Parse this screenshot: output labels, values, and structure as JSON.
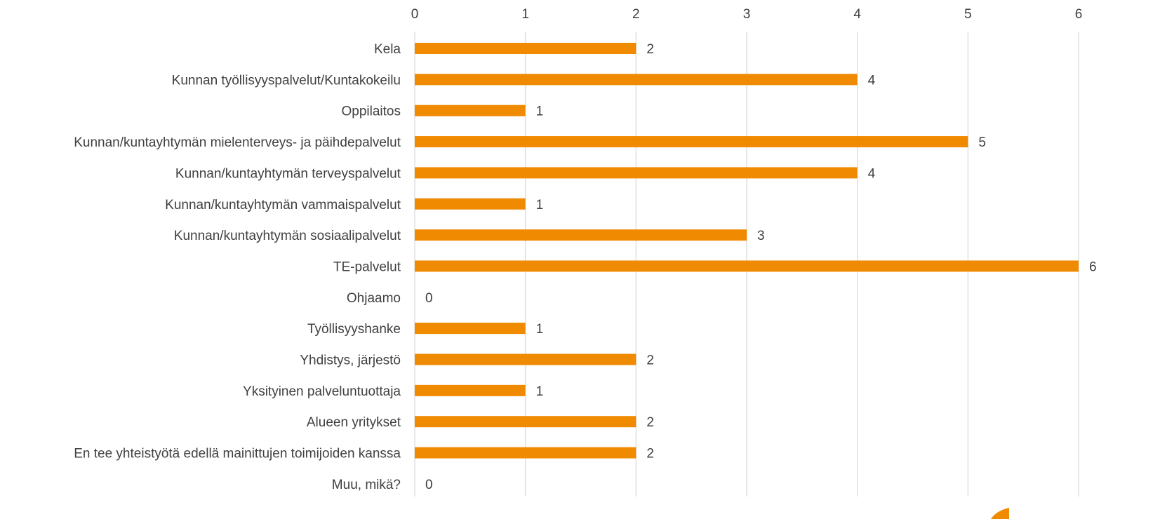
{
  "chart_data": {
    "type": "bar",
    "orientation": "horizontal",
    "xaxis_position": "top",
    "grid": true,
    "legend": "none",
    "xlim": [
      0,
      6
    ],
    "ticks": [
      0,
      1,
      2,
      3,
      4,
      5,
      6
    ],
    "tick_labels": [
      "0",
      "1",
      "2",
      "3",
      "4",
      "5",
      "6"
    ],
    "bar_color": "#f08a00",
    "categories": [
      "Kela",
      "Kunnan työllisyyspalvelut/Kuntakokeilu",
      "Oppilaitos",
      "Kunnan/kuntayhtymän mielenterveys- ja päihdepalvelut",
      "Kunnan/kuntayhtymän terveyspalvelut",
      "Kunnan/kuntayhtymän vammaispalvelut",
      "Kunnan/kuntayhtymän sosiaalipalvelut",
      "TE-palvelut",
      "Ohjaamo",
      "Työllisyyshanke",
      "Yhdistys, järjestö",
      "Yksityinen palveluntuottaja",
      "Alueen yritykset",
      "En tee yhteistyötä edellä mainittujen toimijoiden kanssa",
      "Muu, mikä?"
    ],
    "values": [
      2,
      4,
      1,
      5,
      4,
      1,
      3,
      6,
      0,
      1,
      2,
      1,
      2,
      2,
      0
    ],
    "data_labels": [
      "2",
      "4",
      "1",
      "5",
      "4",
      "1",
      "3",
      "6",
      "0",
      "1",
      "2",
      "1",
      "2",
      "2",
      "0"
    ]
  }
}
